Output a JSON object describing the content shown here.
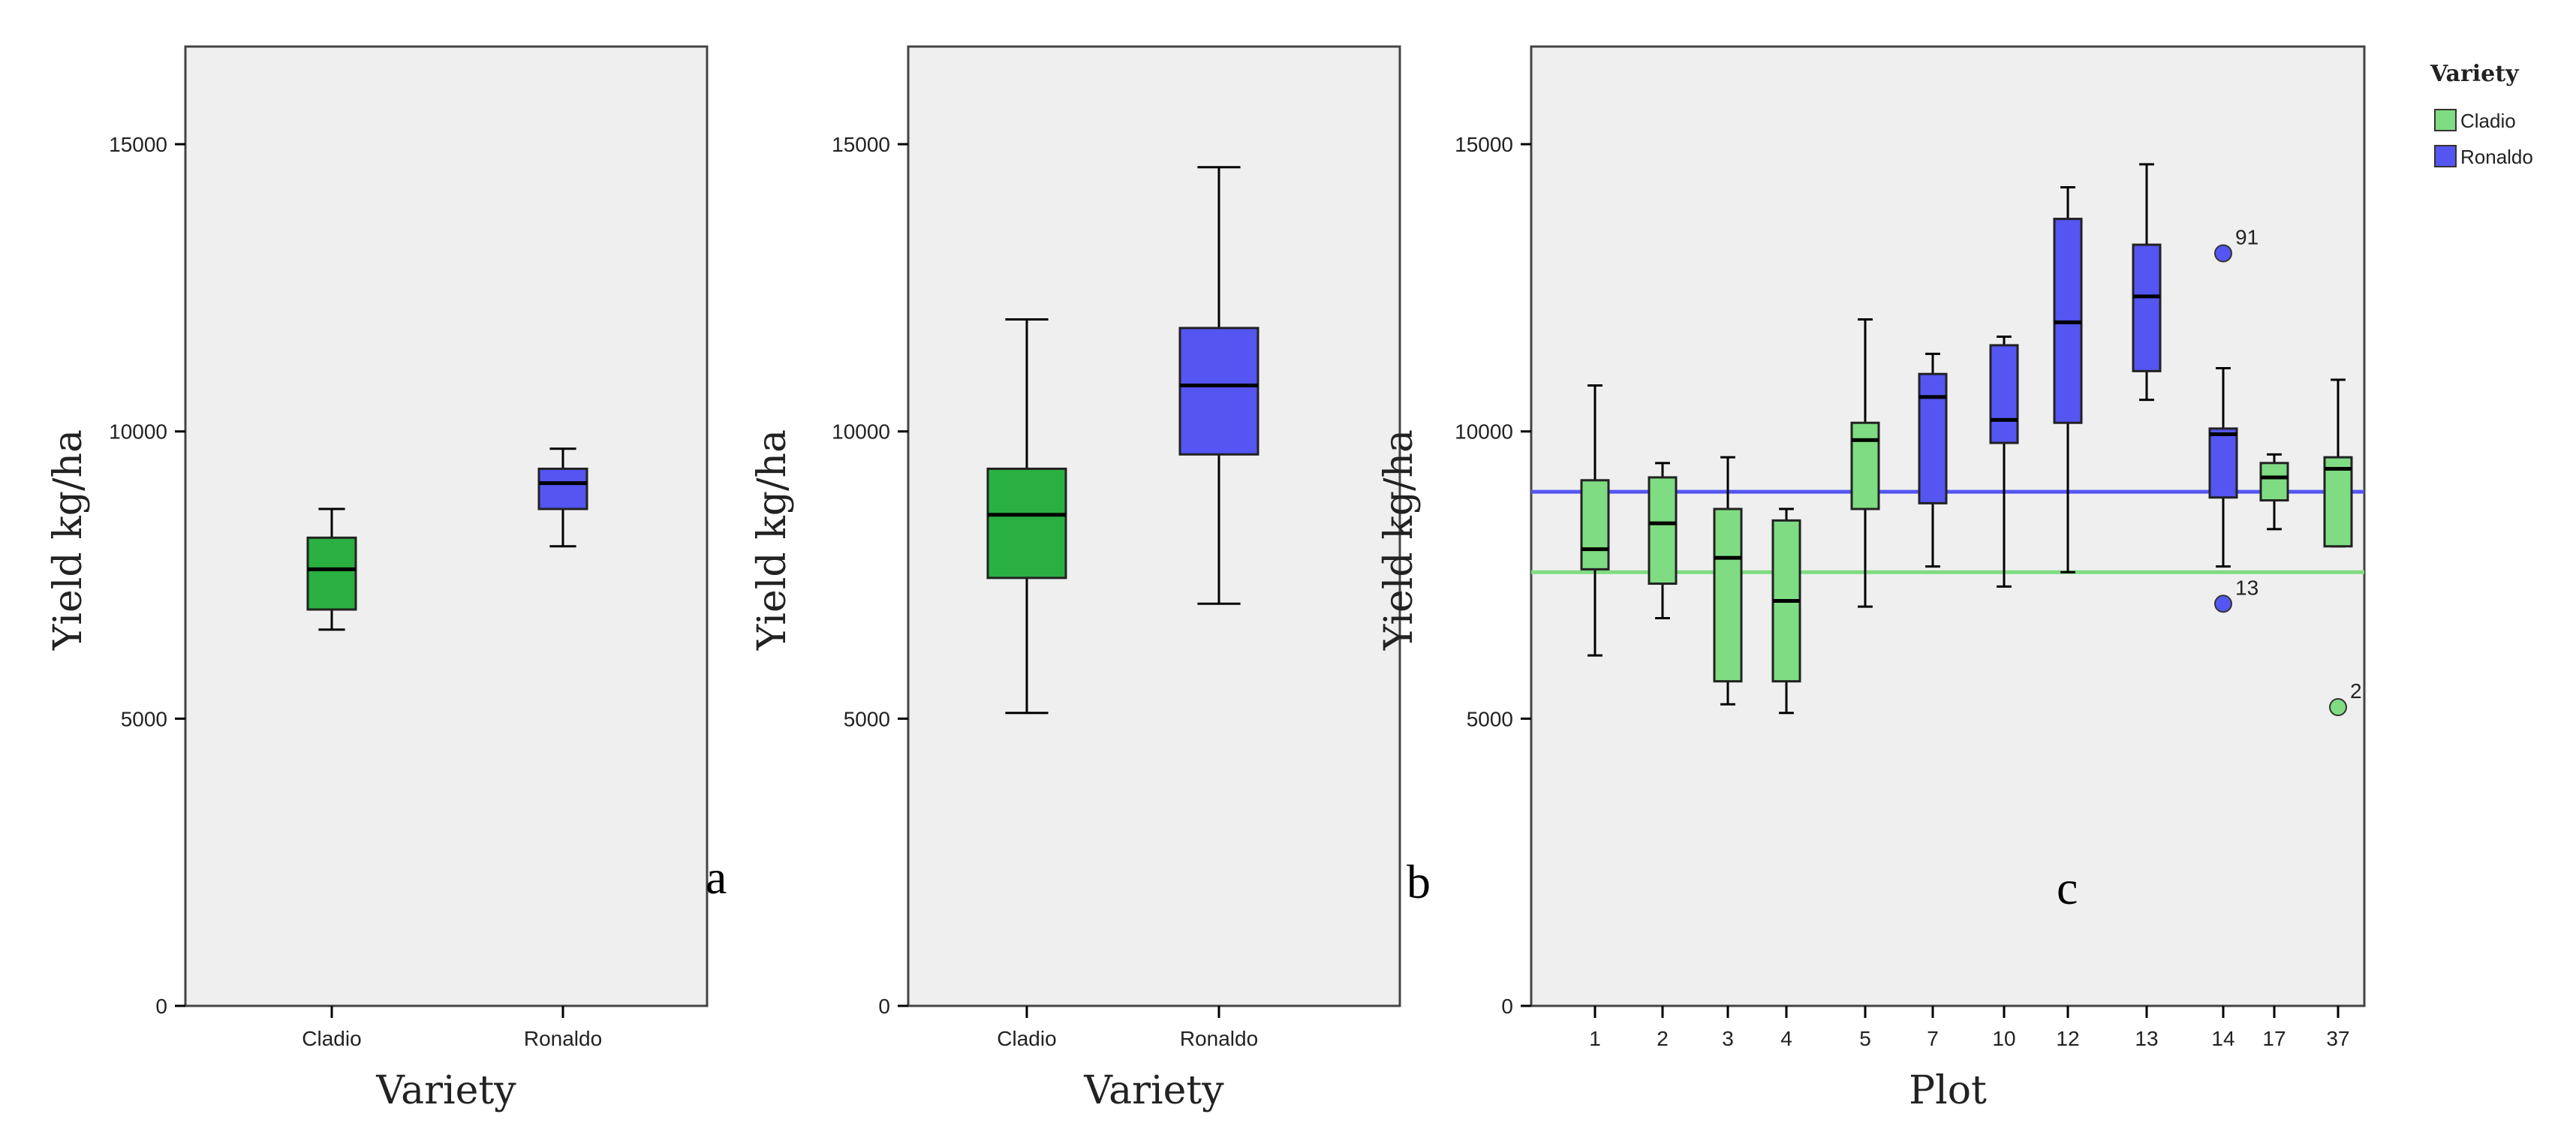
{
  "chart_data": [
    {
      "panel": "a",
      "type": "boxplot",
      "ylabel": "Yield kg/ha",
      "xlabel": "Variety",
      "ylim": [
        0,
        16700
      ],
      "yticks": [
        0,
        5000,
        10000,
        15000
      ],
      "categories": [
        "Cladio",
        "Ronaldo"
      ],
      "boxes": [
        {
          "category": "Cladio",
          "color": "#2ab040",
          "min": 6550,
          "q1": 6900,
          "median": 7600,
          "q3": 8150,
          "max": 8650
        },
        {
          "category": "Ronaldo",
          "color": "#5555f2",
          "min": 8000,
          "q1": 8650,
          "median": 9100,
          "q3": 9350,
          "max": 9700
        }
      ]
    },
    {
      "panel": "b",
      "type": "boxplot",
      "ylabel": "Yield kg/ha",
      "xlabel": "Variety",
      "ylim": [
        0,
        16700
      ],
      "yticks": [
        0,
        5000,
        10000,
        15000
      ],
      "categories": [
        "Cladio",
        "Ronaldo"
      ],
      "boxes": [
        {
          "category": "Cladio",
          "color": "#2ab040",
          "min": 5100,
          "q1": 7450,
          "median": 8550,
          "q3": 9350,
          "max": 11950
        },
        {
          "category": "Ronaldo",
          "color": "#5555f2",
          "min": 7000,
          "q1": 9600,
          "median": 10800,
          "q3": 11800,
          "max": 14600
        }
      ]
    },
    {
      "panel": "c",
      "type": "boxplot",
      "ylabel": "Yield kg/ha",
      "xlabel": "Plot",
      "ylim": [
        0,
        16700
      ],
      "yticks": [
        0,
        5000,
        10000,
        15000
      ],
      "categories": [
        "1",
        "2",
        "3",
        "4",
        "5",
        "7",
        "10",
        "12",
        "13",
        "14",
        "17",
        "37"
      ],
      "legend": {
        "title": "Variety",
        "position": "top-right",
        "entries": [
          {
            "label": "Cladio",
            "color": "#7fdc82"
          },
          {
            "label": "Ronaldo",
            "color": "#5555f2"
          }
        ]
      },
      "reference_lines": [
        {
          "variety": "Ronaldo",
          "value": 8950,
          "color": "#5555f2"
        },
        {
          "variety": "Cladio",
          "value": 7550,
          "color": "#7fdc82"
        }
      ],
      "boxes": [
        {
          "category": "1",
          "variety": "Cladio",
          "min": 6100,
          "q1": 7600,
          "median": 7950,
          "q3": 9150,
          "max": 10800
        },
        {
          "category": "2",
          "variety": "Cladio",
          "min": 6750,
          "q1": 7350,
          "median": 8400,
          "q3": 9200,
          "max": 9450
        },
        {
          "category": "3",
          "variety": "Cladio",
          "min": 5250,
          "q1": 5650,
          "median": 7800,
          "q3": 8650,
          "max": 9550
        },
        {
          "category": "4",
          "variety": "Cladio",
          "min": 5100,
          "q1": 5650,
          "median": 7050,
          "q3": 8450,
          "max": 8650
        },
        {
          "category": "5",
          "variety": "Cladio",
          "min": 6950,
          "q1": 8650,
          "median": 9850,
          "q3": 10150,
          "max": 11950
        },
        {
          "category": "7",
          "variety": "Ronaldo",
          "min": 7650,
          "q1": 8750,
          "median": 10600,
          "q3": 11000,
          "max": 11350
        },
        {
          "category": "10",
          "variety": "Ronaldo",
          "min": 7300,
          "q1": 9800,
          "median": 10200,
          "q3": 11500,
          "max": 11650
        },
        {
          "category": "12",
          "variety": "Ronaldo",
          "min": 7550,
          "q1": 10150,
          "median": 11900,
          "q3": 13700,
          "max": 14250
        },
        {
          "category": "13",
          "variety": "Ronaldo",
          "min": 10550,
          "q1": 11050,
          "median": 12350,
          "q3": 13250,
          "max": 14650
        },
        {
          "category": "14",
          "variety": "Ronaldo",
          "min": 7650,
          "q1": 8850,
          "median": 9950,
          "q3": 10050,
          "max": 11100
        },
        {
          "category": "17",
          "variety": "Cladio",
          "min": 8300,
          "q1": 8800,
          "median": 9200,
          "q3": 9450,
          "max": 9600
        },
        {
          "category": "37",
          "variety": "Cladio",
          "min": 8000,
          "q1": 8000,
          "median": 9350,
          "q3": 9550,
          "max": 10900
        }
      ],
      "outliers": [
        {
          "category": "14",
          "value": 13100,
          "label": "91",
          "variety": "Ronaldo"
        },
        {
          "category": "14",
          "value": 7000,
          "label": "13",
          "variety": "Ronaldo"
        },
        {
          "category": "37",
          "value": 5200,
          "label": "2",
          "variety": "Cladio"
        }
      ]
    }
  ],
  "panel_letters": {
    "a": "a",
    "b": "b",
    "c": "c"
  }
}
